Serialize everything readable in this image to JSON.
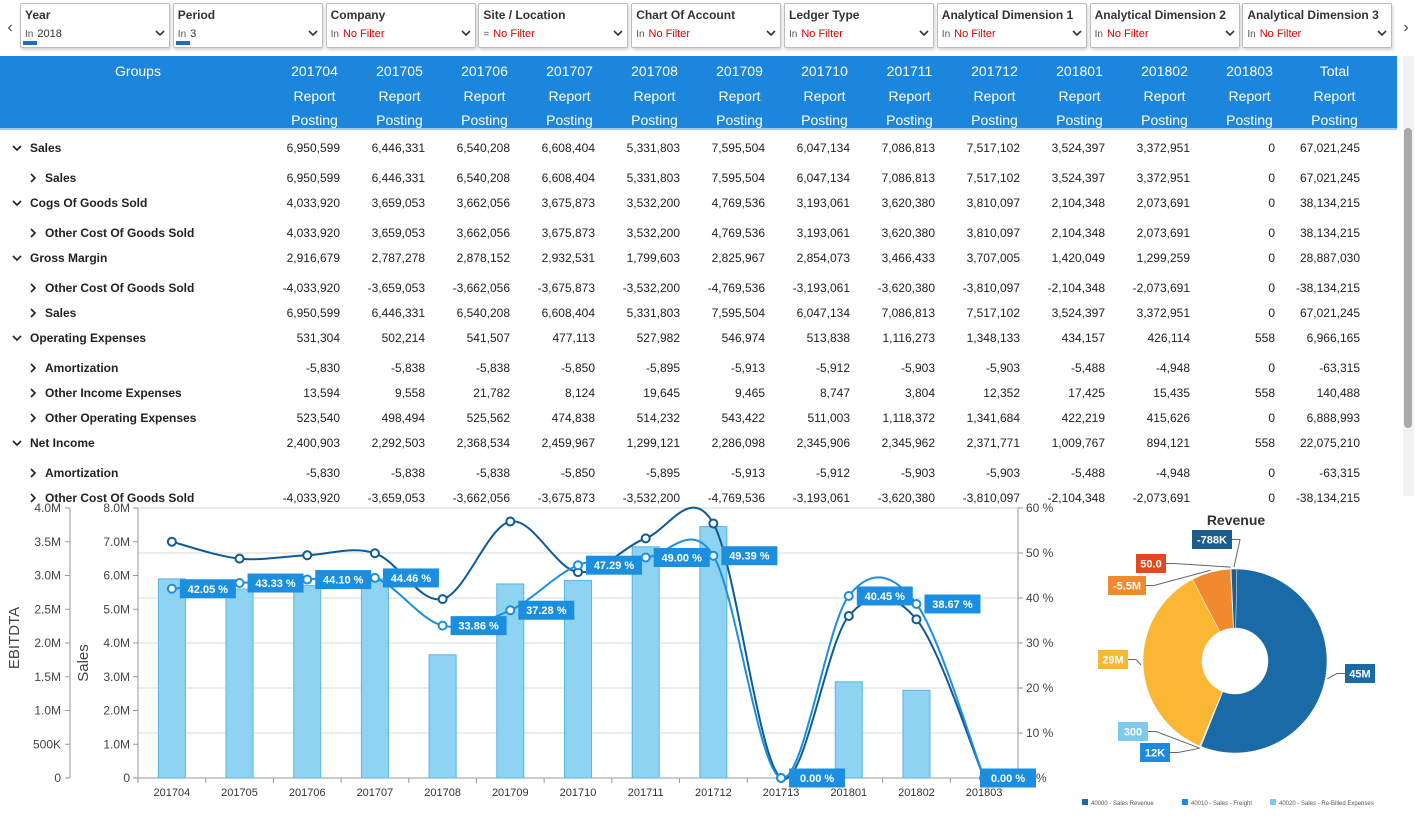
{
  "filters": [
    {
      "title": "Year",
      "op": "In",
      "value": "2018",
      "red": false,
      "bar": true
    },
    {
      "title": "Period",
      "op": "In",
      "value": "3",
      "red": false,
      "bar": true
    },
    {
      "title": "Company",
      "op": "In",
      "value": "No Filter",
      "red": true,
      "bar": false
    },
    {
      "title": "Site / Location",
      "op": "=",
      "value": "No Filter",
      "red": true,
      "bar": false
    },
    {
      "title": "Chart Of Account",
      "op": "In",
      "value": "No Filter",
      "red": true,
      "bar": false
    },
    {
      "title": "Ledger Type",
      "op": "In",
      "value": "No Filter",
      "red": true,
      "bar": false
    },
    {
      "title": "Analytical Dimension 1",
      "op": "In",
      "value": "No Filter",
      "red": true,
      "bar": false
    },
    {
      "title": "Analytical Dimension 2",
      "op": "In",
      "value": "No Filter",
      "red": true,
      "bar": false
    },
    {
      "title": "Analytical Dimension 3",
      "op": "In",
      "value": "No Filter",
      "red": true,
      "bar": false
    }
  ],
  "nav": {
    "left": "‹",
    "right": "›"
  },
  "table": {
    "groups_header": "Groups",
    "columns": [
      "201704",
      "201705",
      "201706",
      "201707",
      "201708",
      "201709",
      "201710",
      "201711",
      "201712",
      "201801",
      "201802",
      "201803",
      "Total"
    ],
    "sub1": "Report",
    "sub2": "Posting",
    "rows": [
      {
        "label": "Sales",
        "level": 0,
        "expanded": true,
        "values": [
          "6,950,599",
          "6,446,331",
          "6,540,208",
          "6,608,404",
          "5,331,803",
          "7,595,504",
          "6,047,134",
          "7,086,813",
          "7,517,102",
          "3,524,397",
          "3,372,951",
          "0",
          "67,021,245"
        ]
      },
      {
        "label": "Sales",
        "level": 1,
        "expanded": false,
        "values": [
          "6,950,599",
          "6,446,331",
          "6,540,208",
          "6,608,404",
          "5,331,803",
          "7,595,504",
          "6,047,134",
          "7,086,813",
          "7,517,102",
          "3,524,397",
          "3,372,951",
          "0",
          "67,021,245"
        ]
      },
      {
        "label": "Cogs Of Goods Sold",
        "level": 0,
        "expanded": true,
        "values": [
          "4,033,920",
          "3,659,053",
          "3,662,056",
          "3,675,873",
          "3,532,200",
          "4,769,536",
          "3,193,061",
          "3,620,380",
          "3,810,097",
          "2,104,348",
          "2,073,691",
          "0",
          "38,134,215"
        ]
      },
      {
        "label": "Other Cost Of Goods Sold",
        "level": 1,
        "expanded": false,
        "values": [
          "4,033,920",
          "3,659,053",
          "3,662,056",
          "3,675,873",
          "3,532,200",
          "4,769,536",
          "3,193,061",
          "3,620,380",
          "3,810,097",
          "2,104,348",
          "2,073,691",
          "0",
          "38,134,215"
        ]
      },
      {
        "label": "Gross Margin",
        "level": 0,
        "expanded": true,
        "values": [
          "2,916,679",
          "2,787,278",
          "2,878,152",
          "2,932,531",
          "1,799,603",
          "2,825,967",
          "2,854,073",
          "3,466,433",
          "3,707,005",
          "1,420,049",
          "1,299,259",
          "0",
          "28,887,030"
        ]
      },
      {
        "label": "Other Cost Of Goods Sold",
        "level": 1,
        "expanded": false,
        "values": [
          "-4,033,920",
          "-3,659,053",
          "-3,662,056",
          "-3,675,873",
          "-3,532,200",
          "-4,769,536",
          "-3,193,061",
          "-3,620,380",
          "-3,810,097",
          "-2,104,348",
          "-2,073,691",
          "0",
          "-38,134,215"
        ]
      },
      {
        "label": "Sales",
        "level": 1,
        "expanded": false,
        "values": [
          "6,950,599",
          "6,446,331",
          "6,540,208",
          "6,608,404",
          "5,331,803",
          "7,595,504",
          "6,047,134",
          "7,086,813",
          "7,517,102",
          "3,524,397",
          "3,372,951",
          "0",
          "67,021,245"
        ]
      },
      {
        "label": "Operating Expenses",
        "level": 0,
        "expanded": true,
        "values": [
          "531,304",
          "502,214",
          "541,507",
          "477,113",
          "527,982",
          "546,974",
          "513,838",
          "1,116,273",
          "1,348,133",
          "434,157",
          "426,114",
          "558",
          "6,966,165"
        ]
      },
      {
        "label": "Amortization",
        "level": 1,
        "expanded": false,
        "values": [
          "-5,830",
          "-5,838",
          "-5,838",
          "-5,850",
          "-5,895",
          "-5,913",
          "-5,912",
          "-5,903",
          "-5,903",
          "-5,488",
          "-4,948",
          "0",
          "-63,315"
        ]
      },
      {
        "label": "Other Income Expenses",
        "level": 1,
        "expanded": false,
        "values": [
          "13,594",
          "9,558",
          "21,782",
          "8,124",
          "19,645",
          "9,465",
          "8,747",
          "3,804",
          "12,352",
          "17,425",
          "15,435",
          "558",
          "140,488"
        ]
      },
      {
        "label": "Other Operating Expenses",
        "level": 1,
        "expanded": false,
        "values": [
          "523,540",
          "498,494",
          "525,562",
          "474,838",
          "514,232",
          "543,422",
          "511,003",
          "1,118,372",
          "1,341,684",
          "422,219",
          "415,626",
          "0",
          "6,888,993"
        ]
      },
      {
        "label": "Net Income",
        "level": 0,
        "expanded": true,
        "values": [
          "2,400,903",
          "2,292,503",
          "2,368,534",
          "2,459,967",
          "1,299,121",
          "2,286,098",
          "2,345,906",
          "2,345,962",
          "2,371,771",
          "1,009,767",
          "894,121",
          "558",
          "22,075,210"
        ]
      },
      {
        "label": "Amortization",
        "level": 1,
        "expanded": false,
        "values": [
          "-5,830",
          "-5,838",
          "-5,838",
          "-5,850",
          "-5,895",
          "-5,913",
          "-5,912",
          "-5,903",
          "-5,903",
          "-5,488",
          "-4,948",
          "0",
          "-63,315"
        ]
      },
      {
        "label": "Other Cost Of Goods Sold",
        "level": 1,
        "expanded": false,
        "values": [
          "-4,033,920",
          "-3,659,053",
          "-3,662,056",
          "-3,675,873",
          "-3,532,200",
          "-4,769,536",
          "-3,193,061",
          "-3,620,380",
          "-3,810,097",
          "-2,104,348",
          "-2,073,691",
          "0",
          "-38,134,215"
        ]
      }
    ]
  },
  "chart_data": [
    {
      "type": "bar",
      "categories": [
        "201704",
        "201705",
        "201706",
        "201707",
        "201708",
        "201709",
        "201710",
        "201711",
        "201712",
        "201713",
        "201801",
        "201802",
        "201803"
      ],
      "ylabel": "Sales",
      "ylabel2": "EBITDTA",
      "y_ticks": [
        "0",
        "1.0M",
        "2.0M",
        "3.0M",
        "4.0M",
        "5.0M",
        "6.0M",
        "7.0M",
        "8.0M"
      ],
      "y2_ticks": [
        "0",
        "500K",
        "1.0M",
        "1.5M",
        "2.0M",
        "2.5M",
        "3.0M",
        "3.5M",
        "4.0M"
      ],
      "y3_ticks": [
        "0 %",
        "10 %",
        "20 %",
        "30 %",
        "40 %",
        "50 %",
        "60 %"
      ],
      "ylim": [
        0,
        8000000
      ],
      "y2lim": [
        0,
        4000000
      ],
      "y3lim": [
        0,
        60
      ],
      "grid": true,
      "series": [
        {
          "kind": "bar",
          "axis": "sales",
          "values": [
            5900000,
            5600000,
            5700000,
            5900000,
            3650000,
            5750000,
            5850000,
            6850000,
            7450000,
            0,
            2850000,
            2600000,
            0
          ]
        },
        {
          "kind": "line",
          "axis": "ebitdta",
          "values": [
            3500000,
            3250000,
            3300000,
            3330000,
            2650000,
            3800000,
            3050000,
            3550000,
            3770000,
            0,
            2400000,
            2350000,
            0
          ]
        },
        {
          "kind": "line",
          "axis": "percent",
          "values": [
            42.05,
            43.33,
            44.1,
            44.46,
            33.86,
            37.28,
            47.29,
            49.0,
            49.39,
            0.0,
            40.45,
            38.67,
            0.0
          ],
          "labels": [
            "42.05 %",
            "43.33 %",
            "44.10 %",
            "44.46 %",
            "33.86 %",
            "37.28 %",
            "47.29 %",
            "49.00 %",
            "49.39 %",
            "0.00 %",
            "40.45 %",
            "38.67 %",
            "0.00 %"
          ]
        }
      ],
      "colors": {
        "bar": "#8fd3f2",
        "bar_stroke": "#58b4e0",
        "ebitdta": "#0f5a96",
        "percent": "#1b8ee0"
      }
    },
    {
      "type": "pie",
      "title": "Revenue",
      "slices": [
        {
          "label": "45M",
          "value": 45,
          "color": "#1b6aa8"
        },
        {
          "label": "12K",
          "value": 0.012,
          "color": "#1a8be0"
        },
        {
          "label": "300",
          "value": 0.0003,
          "color": "#7ec9ee"
        },
        {
          "label": "29M",
          "value": 29,
          "color": "#fbb634"
        },
        {
          "label": "-5.5M",
          "value": 5.5,
          "color": "#f08a2e"
        },
        {
          "label": "50.0",
          "value": 5e-05,
          "color": "#e14b1c"
        },
        {
          "label": "-788K",
          "value": 0.788,
          "color": "#1c5c8f"
        }
      ],
      "legend": [
        {
          "text": "40000 - Sales Revenue",
          "color": "#1b6aa8"
        },
        {
          "text": "40010 - Sales - Freight",
          "color": "#1a8be0"
        },
        {
          "text": "40020 - Sales - Re-Billed Expenses",
          "color": "#7ec9ee"
        }
      ]
    }
  ]
}
